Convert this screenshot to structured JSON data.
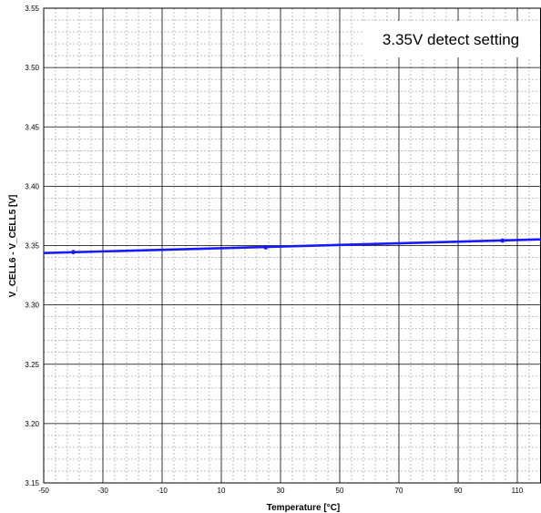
{
  "chart_data": {
    "type": "line",
    "title": "",
    "xlabel": "Temperature [°C]",
    "ylabel": "V_CELL6 - V_CELL5 [V]",
    "annotation": "3.35V detect setting",
    "xlim": [
      -50,
      118
    ],
    "ylim": [
      3.15,
      3.55
    ],
    "x_ticks": [
      "-50",
      "-30",
      "-10",
      "10",
      "30",
      "50",
      "70",
      "90",
      "110"
    ],
    "y_ticks": [
      "3.15",
      "3.20",
      "3.25",
      "3.30",
      "3.35",
      "3.40",
      "3.45",
      "3.50",
      "3.55"
    ],
    "grid": true,
    "legend": "none",
    "series": [
      {
        "color": "#1a1aff",
        "line_x": [
          -50,
          118
        ],
        "line_y": [
          3.3437,
          3.3552
        ],
        "points": [
          {
            "x": -40,
            "y": 3.3445
          },
          {
            "x": 25,
            "y": 3.3485
          },
          {
            "x": 105,
            "y": 3.3542
          }
        ]
      }
    ]
  }
}
